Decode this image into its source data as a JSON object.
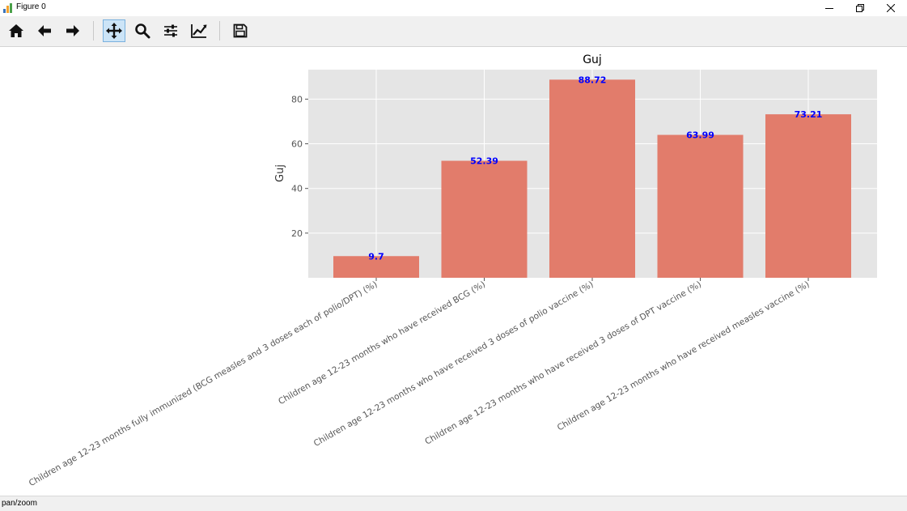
{
  "window": {
    "title": "Figure 0",
    "icons": [
      "app-icon",
      "minimize-icon",
      "restore-icon",
      "close-icon"
    ]
  },
  "toolbar": {
    "buttons": [
      {
        "name": "home-button",
        "icon": "home-icon"
      },
      {
        "name": "back-button",
        "icon": "arrow-left-icon"
      },
      {
        "name": "forward-button",
        "icon": "arrow-right-icon"
      },
      {
        "name": "pan-button",
        "icon": "move-icon",
        "active": true
      },
      {
        "name": "zoom-button",
        "icon": "magnifier-icon"
      },
      {
        "name": "subplots-button",
        "icon": "sliders-icon"
      },
      {
        "name": "axes-edit-button",
        "icon": "line-chart-icon"
      },
      {
        "name": "save-button",
        "icon": "floppy-disk-icon"
      }
    ]
  },
  "status": {
    "text": "pan/zoom"
  },
  "chart_data": {
    "type": "bar",
    "title": "Guj",
    "ylabel": "Guj",
    "xlabel": "",
    "categories": [
      "Children age 12-23 months fully immunized (BCG measles and 3 doses each of polio/DPT) (%)",
      "Children age 12-23 months who have received BCG (%)",
      "Children age 12-23 months who have received 3 doses of polio vaccine (%)",
      "Children age 12-23 months who have received 3 doses of DPT vaccine (%)",
      "Children age 12-23 months who have received measles vaccine (%)"
    ],
    "values": [
      9.7,
      52.39,
      88.72,
      63.99,
      73.21
    ],
    "value_labels": [
      "9.7",
      "52.39",
      "88.72",
      "63.99",
      "73.21"
    ],
    "yticks": [
      20,
      40,
      60,
      80
    ],
    "ylim": [
      0,
      93.2
    ],
    "grid": true,
    "colors": {
      "bar": "#e27c6b",
      "value_label": "#0000ff",
      "axes_bg": "#e5e5e5",
      "grid": "#ffffff",
      "tick_text": "#555555"
    }
  }
}
